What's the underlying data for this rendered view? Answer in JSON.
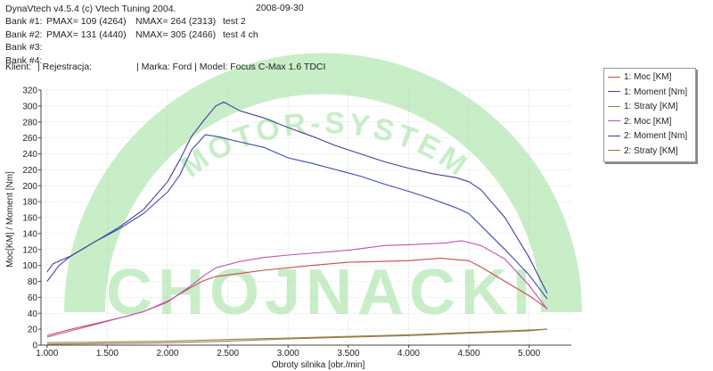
{
  "header": {
    "app": "DynaVtech v4.5.4 (c) Vtech Tuning 2004.",
    "date": "2008-09-30",
    "bank1": {
      "label": "Bank #1:",
      "pmax": "PMAX= 109 (4264)",
      "nmax": "NMAX= 264 (2313)",
      "test": "test 2"
    },
    "bank2": {
      "label": "Bank #2:",
      "pmax": "PMAX= 131 (4440)",
      "nmax": "NMAX= 305 (2466)",
      "test": "test 4 ch"
    },
    "bank3": "Bank #3:",
    "bank4": "Bank #4:",
    "client": {
      "label": "Klient:",
      "registration": "| Rejestracja:",
      "model": "| Marka: Ford | Model: Focus C-Max 1.6 TDCI"
    }
  },
  "watermark": {
    "arc_text": "MOTOR-SYSTEM",
    "big_text": "CHOJNACKI"
  },
  "colors": {
    "moc1": "#cc4a4a",
    "moment1": "#3a4ab0",
    "straty1": "#8a8a4a",
    "moc2": "#c050b8",
    "moment2": "#4a3aa0",
    "straty2": "#a07848",
    "watermark": "#c8eec8"
  },
  "chart_data": {
    "type": "line",
    "xlabel": "Obroty silnika [obr./min]",
    "ylabel": "Moc[KM] / Moment [Nm]",
    "xlim": [
      950,
      5350
    ],
    "ylim": [
      0,
      320
    ],
    "xticks": [
      1000,
      1500,
      2000,
      2500,
      3000,
      3500,
      4000,
      4500,
      5000
    ],
    "xtick_labels": [
      "1.000",
      "1.500",
      "2.000",
      "2.500",
      "3.000",
      "3.500",
      "4.000",
      "4.500",
      "5.000"
    ],
    "yticks": [
      0,
      20,
      40,
      60,
      80,
      100,
      120,
      140,
      160,
      180,
      200,
      220,
      240,
      260,
      280,
      300,
      320
    ],
    "grid": true,
    "legend_position": "top-right",
    "series": [
      {
        "name": "1: Moc [KM]",
        "color": "#cc4a4a",
        "x": [
          1000,
          1200,
          1400,
          1600,
          1800,
          2000,
          2200,
          2300,
          2400,
          2600,
          2800,
          3000,
          3200,
          3500,
          4000,
          4264,
          4500,
          4600,
          4800,
          5000,
          5150
        ],
        "y": [
          12,
          20,
          27,
          34,
          42,
          55,
          73,
          81,
          86,
          90,
          94,
          97,
          100,
          104,
          106,
          109,
          106,
          98,
          80,
          62,
          46
        ]
      },
      {
        "name": "1: Moment [Nm]",
        "color": "#3a4ab0",
        "x": [
          1000,
          1100,
          1200,
          1400,
          1600,
          1800,
          2000,
          2100,
          2200,
          2313,
          2400,
          2600,
          2800,
          3000,
          3200,
          3400,
          3600,
          3800,
          4000,
          4200,
          4400,
          4500,
          4600,
          4800,
          5000,
          5150
        ],
        "y": [
          80,
          100,
          112,
          130,
          146,
          165,
          192,
          213,
          245,
          264,
          262,
          255,
          248,
          235,
          228,
          220,
          212,
          202,
          193,
          183,
          172,
          165,
          150,
          120,
          88,
          58
        ]
      },
      {
        "name": "1: Straty [KM]",
        "color": "#8a8a4a",
        "x": [
          1000,
          1500,
          2000,
          2500,
          3000,
          3500,
          4000,
          4500,
          5000,
          5150
        ],
        "y": [
          3,
          4,
          5,
          7,
          9,
          11,
          13,
          16,
          19,
          20
        ]
      },
      {
        "name": "2: Moc [KM]",
        "color": "#c050b8",
        "x": [
          1000,
          1200,
          1400,
          1600,
          1800,
          2000,
          2200,
          2300,
          2400,
          2600,
          2800,
          3000,
          3500,
          3800,
          4000,
          4300,
          4440,
          4600,
          4800,
          5000,
          5150
        ],
        "y": [
          10,
          18,
          26,
          34,
          42,
          54,
          75,
          87,
          97,
          105,
          110,
          113,
          119,
          125,
          126,
          128,
          131,
          125,
          108,
          75,
          45
        ]
      },
      {
        "name": "2: Moment [Nm]",
        "color": "#4a3aa0",
        "x": [
          1000,
          1050,
          1200,
          1400,
          1600,
          1800,
          2000,
          2100,
          2200,
          2300,
          2400,
          2466,
          2600,
          2800,
          3000,
          3200,
          3400,
          3600,
          3800,
          4000,
          4200,
          4400,
          4500,
          4600,
          4800,
          5000,
          5150
        ],
        "y": [
          92,
          102,
          112,
          130,
          148,
          170,
          205,
          232,
          262,
          282,
          300,
          305,
          294,
          285,
          273,
          262,
          250,
          240,
          230,
          222,
          215,
          210,
          205,
          195,
          160,
          110,
          65
        ]
      },
      {
        "name": "2: Straty [KM]",
        "color": "#a07848",
        "x": [
          1000,
          1500,
          2000,
          2500,
          3000,
          3500,
          4000,
          4500,
          5000,
          5150
        ],
        "y": [
          1,
          2,
          3,
          5,
          8,
          10,
          12,
          15,
          18,
          20
        ]
      }
    ]
  }
}
